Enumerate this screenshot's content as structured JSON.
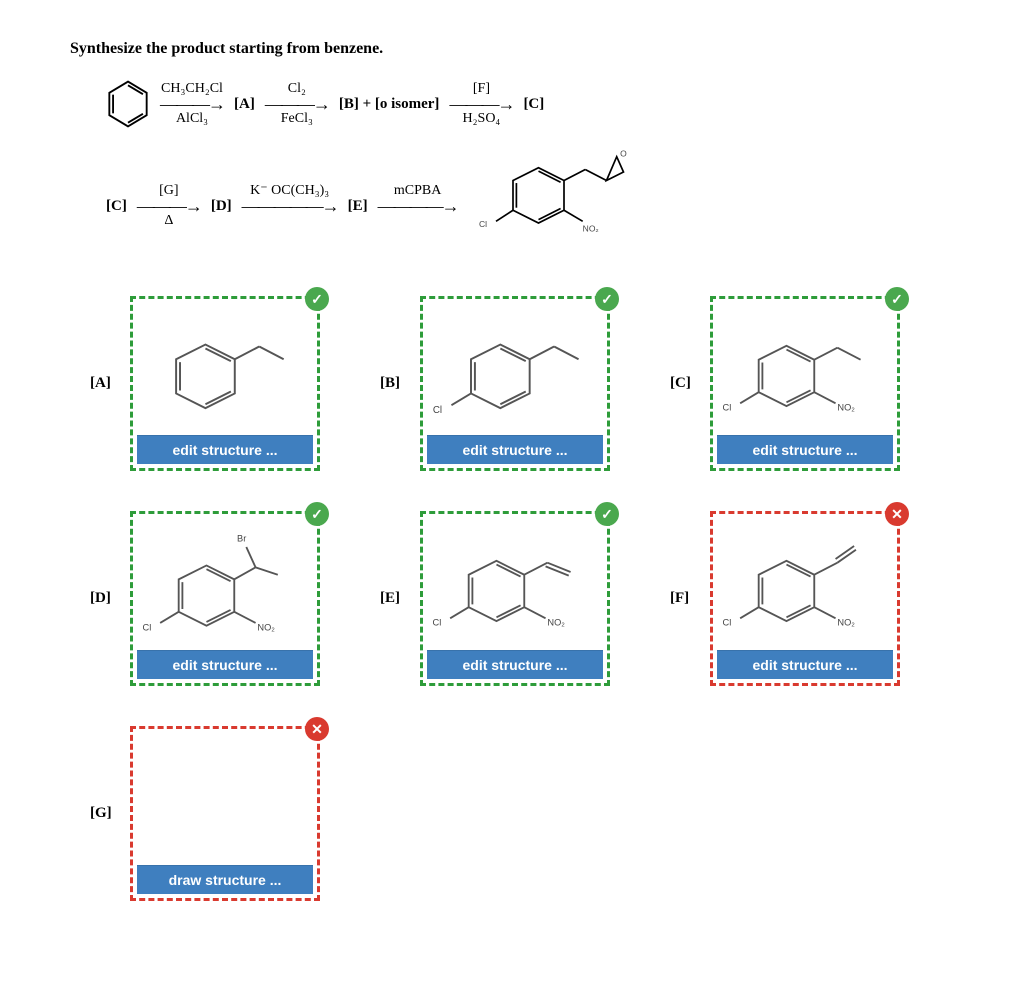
{
  "prompt": "Synthesize the product starting from benzene.",
  "scheme": {
    "step1_top": "CH₃CH₂Cl",
    "step1_bot": "AlCl₃",
    "int_A": "[A]",
    "step2_top": "Cl₂",
    "step2_bot": "FeCl₃",
    "int_B": "[B] + [o  isomer]",
    "step3_top": "[F]",
    "step3_bot": "H₂SO₄",
    "int_C": "[C]",
    "row2_start": "[C]",
    "step4_top": "[G]",
    "step4_bot": "Δ",
    "int_D": "[D]",
    "step5_top": "K⁻ OC(CH₃)₃",
    "int_E": "[E]",
    "step6_top": "mCPBA",
    "product_sub_Cl": "Cl",
    "product_sub_NO2": "NO₂"
  },
  "colors": {
    "correct_border": "#2e9c3a",
    "wrong_border": "#d93a2f",
    "button_bg": "#3f7fbf",
    "badge_ok": "#4aa84e",
    "badge_no": "#d93a2f",
    "bond": "#555555"
  },
  "buttons": {
    "edit": "edit structure ...",
    "draw": "draw structure ..."
  },
  "answers": [
    {
      "id": "A",
      "label": "[A]",
      "status": "correct",
      "button": "edit",
      "mol": "ethylbenzene"
    },
    {
      "id": "B",
      "label": "[B]",
      "status": "correct",
      "button": "edit",
      "mol": "p-cl-ethylbenzene"
    },
    {
      "id": "C",
      "label": "[C]",
      "status": "correct",
      "button": "edit",
      "mol": "cl-no2-ethylbenzene"
    },
    {
      "id": "D",
      "label": "[D]",
      "status": "correct",
      "button": "edit",
      "mol": "br-cl-no2"
    },
    {
      "id": "E",
      "label": "[E]",
      "status": "correct",
      "button": "edit",
      "mol": "cl-no2-vinyl"
    },
    {
      "id": "F",
      "label": "[F]",
      "status": "wrong",
      "button": "edit",
      "mol": "cl-no2-vinyl2"
    },
    {
      "id": "G",
      "label": "[G]",
      "status": "wrong",
      "button": "draw",
      "mol": "empty"
    }
  ]
}
